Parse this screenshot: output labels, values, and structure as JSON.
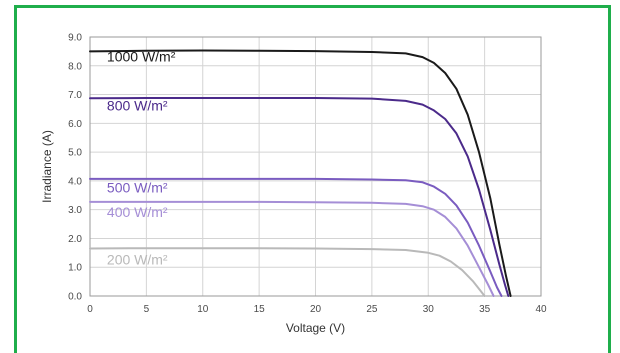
{
  "chart_data": {
    "type": "line",
    "title": "",
    "xlabel": "Voltage (V)",
    "ylabel": "Irradiance (A)",
    "xlim": [
      0,
      40
    ],
    "ylim": [
      0,
      9
    ],
    "x_ticks": [
      "0",
      "5",
      "10",
      "15",
      "20",
      "25",
      "30",
      "35",
      "40"
    ],
    "y_ticks": [
      "0.0",
      "1.0",
      "2.0",
      "3.0",
      "4.0",
      "5.0",
      "6.0",
      "7.0",
      "8.0",
      "9.0"
    ],
    "grid": true,
    "series": [
      {
        "name": "1000 W/m²",
        "color": "#1a1a1a",
        "label_pos": [
          1.5,
          8.15
        ],
        "points": [
          [
            0,
            8.5
          ],
          [
            5,
            8.52
          ],
          [
            10,
            8.53
          ],
          [
            15,
            8.52
          ],
          [
            20,
            8.51
          ],
          [
            25,
            8.48
          ],
          [
            28,
            8.43
          ],
          [
            29.5,
            8.3
          ],
          [
            30.5,
            8.1
          ],
          [
            31.5,
            7.75
          ],
          [
            32.5,
            7.2
          ],
          [
            33.5,
            6.3
          ],
          [
            34.5,
            5.0
          ],
          [
            35.5,
            3.4
          ],
          [
            36.3,
            1.8
          ],
          [
            36.9,
            0.7
          ],
          [
            37.3,
            0
          ]
        ]
      },
      {
        "name": "800 W/m²",
        "color": "#4b2a8a",
        "label_pos": [
          1.5,
          6.45
        ],
        "points": [
          [
            0,
            6.87
          ],
          [
            5,
            6.88
          ],
          [
            10,
            6.88
          ],
          [
            15,
            6.88
          ],
          [
            20,
            6.88
          ],
          [
            25,
            6.86
          ],
          [
            28,
            6.78
          ],
          [
            29.5,
            6.65
          ],
          [
            30.5,
            6.45
          ],
          [
            31.5,
            6.15
          ],
          [
            32.5,
            5.65
          ],
          [
            33.5,
            4.85
          ],
          [
            34.5,
            3.7
          ],
          [
            35.5,
            2.3
          ],
          [
            36.3,
            1.1
          ],
          [
            36.8,
            0.4
          ],
          [
            37.1,
            0
          ]
        ]
      },
      {
        "name": "500 W/m²",
        "color": "#7a5cc0",
        "label_pos": [
          1.5,
          3.6
        ],
        "points": [
          [
            0,
            4.07
          ],
          [
            5,
            4.07
          ],
          [
            10,
            4.07
          ],
          [
            15,
            4.07
          ],
          [
            20,
            4.07
          ],
          [
            25,
            4.05
          ],
          [
            28,
            4.02
          ],
          [
            29.5,
            3.95
          ],
          [
            30.5,
            3.8
          ],
          [
            31.5,
            3.55
          ],
          [
            32.5,
            3.15
          ],
          [
            33.5,
            2.55
          ],
          [
            34.5,
            1.75
          ],
          [
            35.5,
            0.85
          ],
          [
            36.1,
            0.3
          ],
          [
            36.5,
            0
          ]
        ]
      },
      {
        "name": "400 W/m²",
        "color": "#a58ed6",
        "label_pos": [
          1.5,
          2.75
        ],
        "points": [
          [
            0,
            3.27
          ],
          [
            5,
            3.27
          ],
          [
            10,
            3.27
          ],
          [
            15,
            3.27
          ],
          [
            20,
            3.26
          ],
          [
            25,
            3.24
          ],
          [
            28,
            3.2
          ],
          [
            29.5,
            3.12
          ],
          [
            30.5,
            3.0
          ],
          [
            31.5,
            2.75
          ],
          [
            32.5,
            2.35
          ],
          [
            33.5,
            1.75
          ],
          [
            34.5,
            1.0
          ],
          [
            35.3,
            0.4
          ],
          [
            35.8,
            0
          ]
        ]
      },
      {
        "name": "200 W/m²",
        "color": "#b9b9b9",
        "label_pos": [
          1.5,
          1.1
        ],
        "points": [
          [
            0,
            1.65
          ],
          [
            5,
            1.66
          ],
          [
            10,
            1.66
          ],
          [
            15,
            1.66
          ],
          [
            20,
            1.65
          ],
          [
            25,
            1.63
          ],
          [
            28,
            1.6
          ],
          [
            30,
            1.5
          ],
          [
            31,
            1.4
          ],
          [
            32,
            1.2
          ],
          [
            33,
            0.9
          ],
          [
            34,
            0.5
          ],
          [
            34.6,
            0.2
          ],
          [
            35.0,
            0
          ]
        ]
      }
    ]
  }
}
